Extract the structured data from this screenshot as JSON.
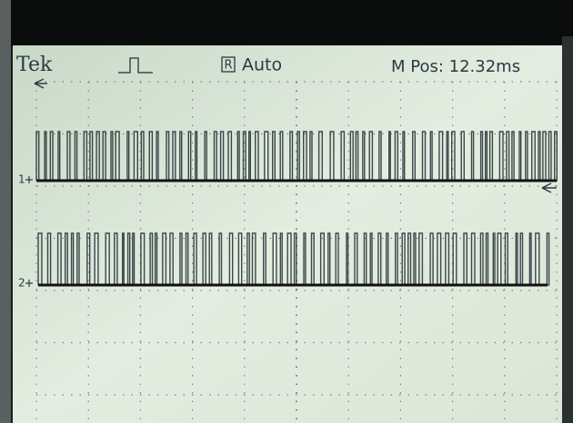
{
  "header": {
    "brand": "Tek",
    "trigger_source": "R",
    "mode": "Auto",
    "position": "M Pos: 12.32ms"
  },
  "channels": [
    {
      "label": "1"
    },
    {
      "label": "2"
    }
  ]
}
